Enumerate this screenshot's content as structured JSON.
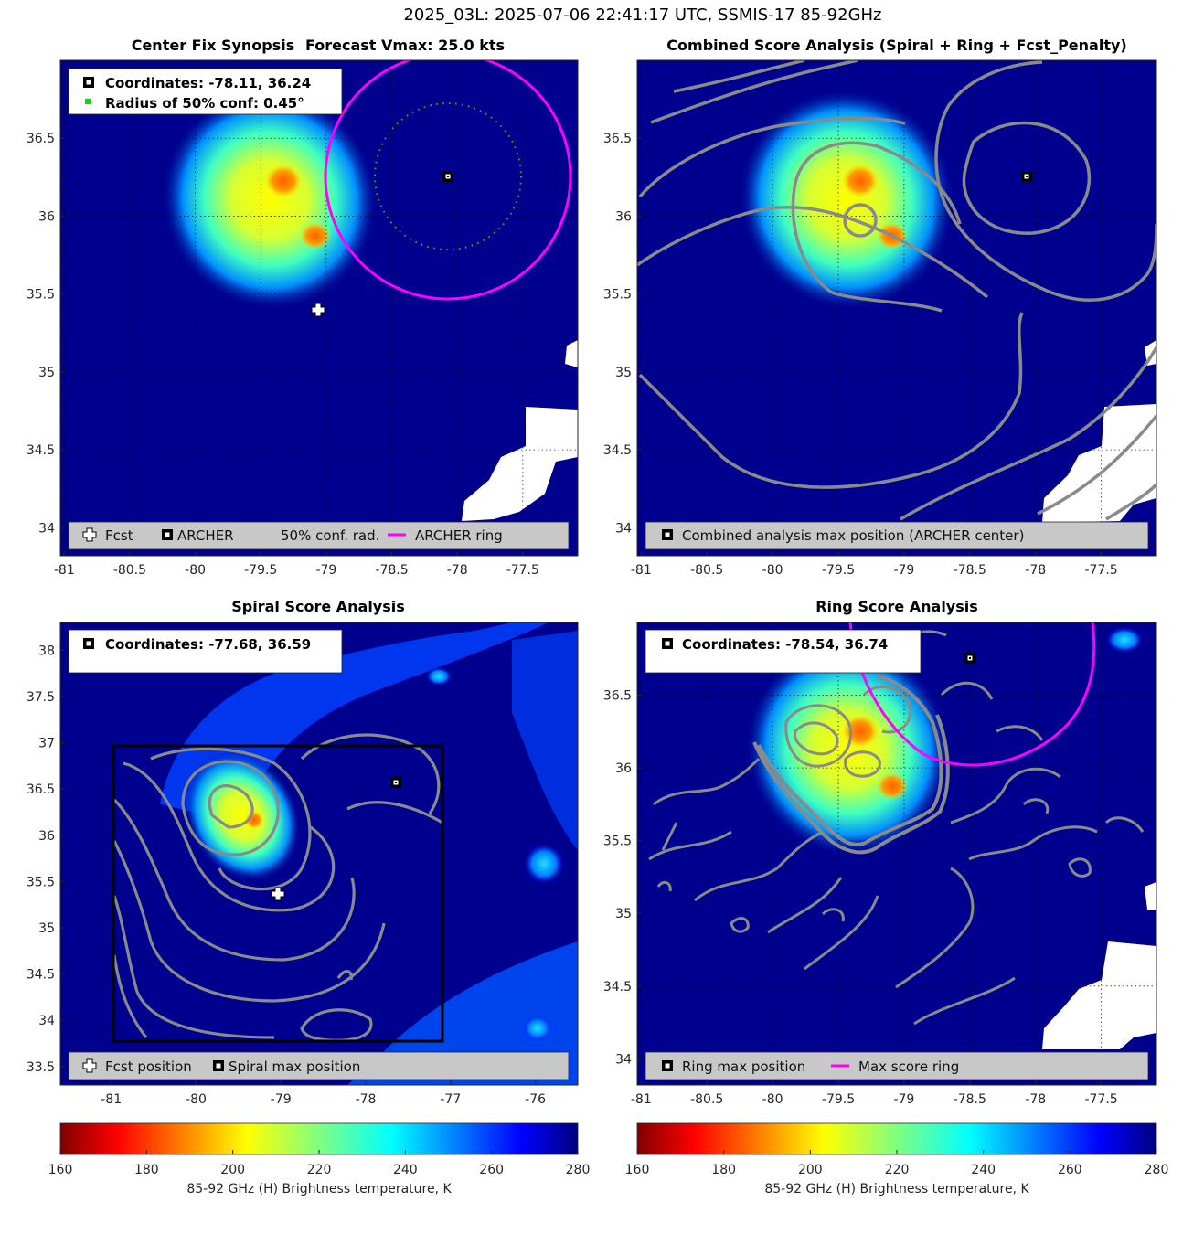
{
  "figure": {
    "suptitle": "2025_03L: 2025-07-06 22:41:17 UTC, SSMIS-17 85-92GHz",
    "colors": {
      "field_background": "#00008f",
      "archer_ring": "#ff00ff",
      "contour": "#8a8a8a",
      "conf_circle": "#00d000",
      "land_mask": "#ffffff"
    }
  },
  "panels": {
    "synopsis": {
      "title_left": "Center Fix Synopsis",
      "title_right": "Forecast Vmax: 25.0 kts",
      "info_coordinates": "Coordinates: -78.11, 36.24",
      "info_radius": "Radius of 50% conf: 0.45°",
      "legend": [
        "Fcst",
        "ARCHER",
        "50% conf. rad.",
        "ARCHER ring"
      ]
    },
    "combined": {
      "title": "Combined Score Analysis (Spiral + Ring + Fcst_Penalty)",
      "legend": [
        "Combined analysis max position (ARCHER center)"
      ]
    },
    "spiral": {
      "title": "Spiral Score Analysis",
      "info_coordinates": "Coordinates: -77.68, 36.59",
      "legend": [
        "Fcst position",
        "Spiral max position"
      ]
    },
    "ring": {
      "title": "Ring Score Analysis",
      "info_coordinates": "Coordinates: -78.54, 36.74",
      "legend": [
        "Ring max position",
        "Max score ring"
      ]
    }
  },
  "colorbars": {
    "label": "85-92 GHz (H) Brightness temperature, K",
    "ticks": [
      "160",
      "180",
      "200",
      "220",
      "240",
      "260",
      "280"
    ],
    "range": [
      160,
      280
    ]
  },
  "chart_data": [
    {
      "type": "heatmap",
      "title": "Center Fix Synopsis",
      "xlim": [
        -81.03,
        -77.08
      ],
      "ylim": [
        33.82,
        37.0
      ],
      "xticks": [
        -81,
        -80.5,
        -80,
        -79.5,
        -79,
        -78.5,
        -78,
        -77.5
      ],
      "yticks": [
        34,
        34.5,
        35,
        35.5,
        36,
        36.5
      ],
      "forecast_position": [
        -79.09,
        35.38
      ],
      "archer_center": [
        -78.11,
        36.24
      ],
      "conf50_radius_deg": 0.45,
      "archer_ring_radius_deg": 0.75
    },
    {
      "type": "heatmap",
      "title": "Combined Score Analysis (Spiral + Ring + Fcst_Penalty)",
      "xlim": [
        -81.03,
        -77.08
      ],
      "ylim": [
        33.82,
        37.0
      ],
      "xticks": [
        -81,
        -80.5,
        -80,
        -79.5,
        -79,
        -78.5,
        -78,
        -77.5
      ],
      "yticks": [
        34,
        34.5,
        35,
        35.5,
        36,
        36.5
      ],
      "max_position": [
        -78.11,
        36.24
      ]
    },
    {
      "type": "heatmap",
      "title": "Spiral Score Analysis",
      "xlim": [
        -81.6,
        -75.5
      ],
      "ylim": [
        33.3,
        38.3
      ],
      "xticks": [
        -81,
        -80,
        -79,
        -78,
        -77,
        -76
      ],
      "yticks": [
        33.5,
        34,
        34.5,
        35,
        35.5,
        36,
        36.5,
        37,
        37.5,
        38
      ],
      "forecast_position": [
        -79.09,
        35.38
      ],
      "spiral_max": [
        -77.68,
        36.59
      ],
      "search_box": {
        "lon": [
          -80.98,
          -77.08
        ],
        "lat": [
          33.8,
          37.0
        ]
      }
    },
    {
      "type": "heatmap",
      "title": "Ring Score Analysis",
      "xlim": [
        -81.03,
        -77.08
      ],
      "ylim": [
        33.82,
        37.0
      ],
      "xticks": [
        -81,
        -80.5,
        -80,
        -79.5,
        -79,
        -78.5,
        -78,
        -77.5
      ],
      "yticks": [
        34,
        34.5,
        35,
        35.5,
        36,
        36.5
      ],
      "ring_max": [
        -78.54,
        36.74
      ],
      "max_ring_radius_deg": 0.75
    }
  ]
}
